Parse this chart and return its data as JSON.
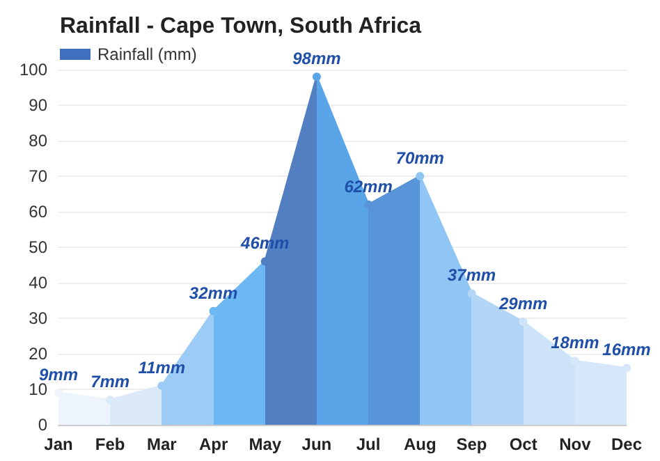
{
  "chart_data": {
    "type": "area",
    "title": "Rainfall - Cape Town, South Africa",
    "categories": [
      "Jan",
      "Feb",
      "Mar",
      "Apr",
      "May",
      "Jun",
      "Jul",
      "Aug",
      "Sep",
      "Oct",
      "Nov",
      "Dec"
    ],
    "series": [
      {
        "name": "Rainfall (mm)",
        "color": "#3f6fbf",
        "values": [
          9,
          7,
          11,
          32,
          46,
          98,
          62,
          70,
          37,
          29,
          18,
          16
        ],
        "value_labels": [
          "9mm",
          "7mm",
          "11mm",
          "32mm",
          "46mm",
          "98mm",
          "62mm",
          "70mm",
          "37mm",
          "29mm",
          "18mm",
          "16mm"
        ],
        "colors": [
          "#eef4fc",
          "#dbe9f9",
          "#9ccbf5",
          "#6cb8f2",
          "#517fc2",
          "#5aa5e8",
          "#5895d8",
          "#8fc6f4",
          "#b3d6f7",
          "#cde3f8",
          "#d6e7f9",
          "#d6e7f9"
        ]
      }
    ],
    "ylim": [
      0,
      100
    ],
    "yticks": [
      0,
      10,
      20,
      30,
      40,
      50,
      60,
      70,
      80,
      90,
      100
    ],
    "grid": "y",
    "legend": "top left",
    "marker": "circle"
  }
}
